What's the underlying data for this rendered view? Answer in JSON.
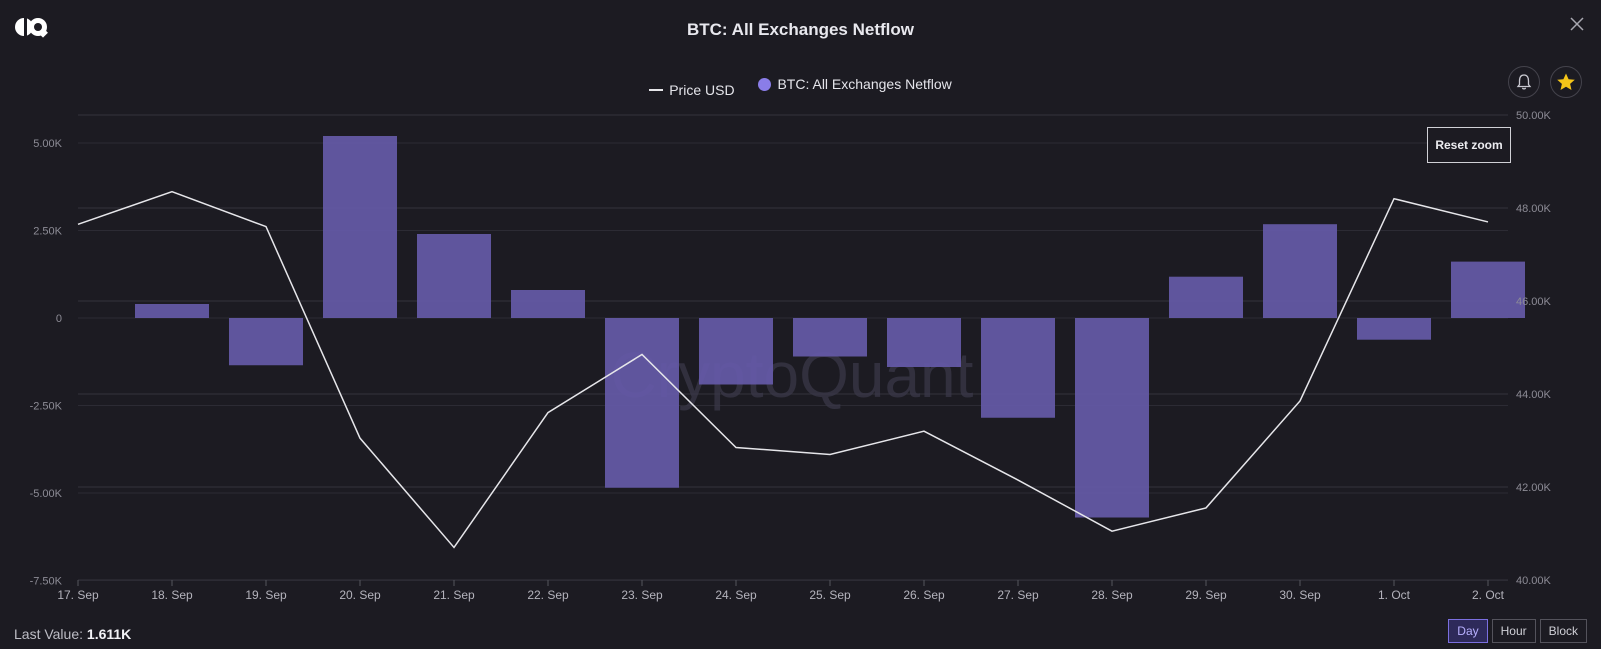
{
  "header": {
    "title": "BTC: All Exchanges Netflow"
  },
  "legend": {
    "price_label": "Price USD",
    "netflow_label": "BTC: All Exchanges Netflow"
  },
  "watermark": "CryptoQuant",
  "controls": {
    "reset_zoom": "Reset zoom",
    "last_value_label": "Last Value:",
    "last_value": "1.611K",
    "ranges": [
      "Day",
      "Hour",
      "Block"
    ],
    "active_range": "Day"
  },
  "colors": {
    "bar": "#655aa8",
    "line": "#e6e6ea",
    "background": "#1c1b22",
    "accent": "#8a7de8",
    "star": "#f5c518"
  },
  "icons": [
    "logo-icon",
    "close-icon",
    "bell-icon",
    "star-icon"
  ],
  "chart_data": {
    "type": "bar",
    "title": "BTC: All Exchanges Netflow",
    "categories": [
      "17. Sep",
      "18. Sep",
      "19. Sep",
      "20. Sep",
      "21. Sep",
      "22. Sep",
      "23. Sep",
      "24. Sep",
      "25. Sep",
      "26. Sep",
      "27. Sep",
      "28. Sep",
      "29. Sep",
      "30. Sep",
      "1. Oct",
      "2. Oct"
    ],
    "series": [
      {
        "name": "BTC: All Exchanges Netflow",
        "type": "bar",
        "axis": "left",
        "values": [
          null,
          400,
          -1350,
          5200,
          2400,
          800,
          -4850,
          -1900,
          -1100,
          -1400,
          -2850,
          -5700,
          1180,
          2680,
          -620,
          1611
        ]
      },
      {
        "name": "Price USD",
        "type": "line",
        "axis": "right",
        "values": [
          47650,
          48350,
          47600,
          43050,
          40700,
          43600,
          44850,
          42850,
          42700,
          43200,
          42150,
          41050,
          41550,
          43850,
          48200,
          47700
        ]
      }
    ],
    "left_axis": {
      "ticks": [
        "5.00K",
        "2.50K",
        "0",
        "-2.50K",
        "-5.00K",
        "-7.50K"
      ],
      "tick_values": [
        5000,
        2500,
        0,
        -2500,
        -5000,
        -7500
      ],
      "range": [
        -7500,
        5500
      ]
    },
    "right_axis": {
      "ticks": [
        "50.00K",
        "48.00K",
        "46.00K",
        "44.00K",
        "42.00K",
        "40.00K"
      ],
      "tick_values": [
        50000,
        48000,
        46000,
        44000,
        42000,
        40000
      ],
      "range": [
        40000,
        50000
      ]
    },
    "grid": true,
    "legend_position": "top-center"
  }
}
